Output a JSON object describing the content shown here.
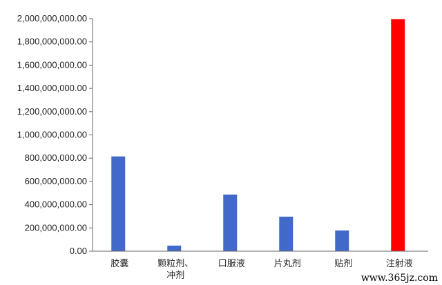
{
  "chart_data": {
    "type": "bar",
    "categories": [
      "胶囊",
      "颗粒剂、冲剂",
      "口服液",
      "片丸剂",
      "贴剂",
      "注射液"
    ],
    "category_lines": [
      [
        "胶囊"
      ],
      [
        "颗粒剂、",
        "冲剂"
      ],
      [
        "口服液"
      ],
      [
        "片丸剂"
      ],
      [
        "贴剂"
      ],
      [
        "注射液"
      ]
    ],
    "values": [
      815000000,
      48000000,
      487000000,
      297000000,
      178000000,
      1995000000
    ],
    "bar_colors": [
      "#4169c8",
      "#4169c8",
      "#4169c8",
      "#4169c8",
      "#4169c8",
      "#ff0000"
    ],
    "title": "",
    "xlabel": "",
    "ylabel": "",
    "ylim": [
      0,
      2000000000
    ],
    "yticks": [
      0,
      200000000,
      400000000,
      600000000,
      800000000,
      1000000000,
      1200000000,
      1400000000,
      1600000000,
      1800000000,
      2000000000
    ],
    "ytick_labels": [
      "0.00",
      "200,000,000.00",
      "400,000,000.00",
      "600,000,000.00",
      "800,000,000.00",
      "1,000,000,000.00",
      "1,200,000,000.00",
      "1,400,000,000.00",
      "1,600,000,000.00",
      "1,800,000,000.00",
      "2,000,000,000.00"
    ],
    "grid": false,
    "legend": "none"
  },
  "watermark": "www.365jz.com"
}
